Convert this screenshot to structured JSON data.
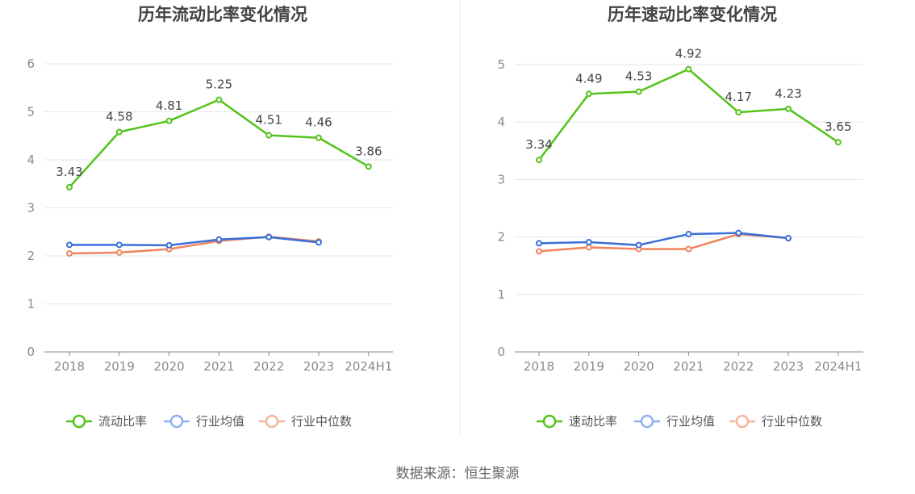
{
  "footer": {
    "source": "数据来源：恒生聚源"
  },
  "chart_data": [
    {
      "type": "line",
      "title": "历年流动比率变化情况",
      "categories": [
        "2018",
        "2019",
        "2020",
        "2021",
        "2022",
        "2023",
        "2024H1"
      ],
      "ylim": [
        0,
        6
      ],
      "yticks": [
        0,
        1,
        2,
        3,
        4,
        5,
        6
      ],
      "grid": true,
      "legend_position": "bottom",
      "series": [
        {
          "name": "流动比率",
          "color": "#52c41a",
          "labels": true,
          "values": [
            3.43,
            4.58,
            4.81,
            5.25,
            4.51,
            4.46,
            3.86
          ]
        },
        {
          "name": "行业均值",
          "color": "#3a6fd8",
          "labels": false,
          "values": [
            2.23,
            2.23,
            2.22,
            2.34,
            2.39,
            2.28,
            null
          ]
        },
        {
          "name": "行业中位数",
          "color": "#f0845a",
          "labels": false,
          "values": [
            2.05,
            2.07,
            2.14,
            2.31,
            2.4,
            2.3,
            null
          ]
        }
      ]
    },
    {
      "type": "line",
      "title": "历年速动比率变化情况",
      "categories": [
        "2018",
        "2019",
        "2020",
        "2021",
        "2022",
        "2023",
        "2024H1"
      ],
      "ylim": [
        0,
        5
      ],
      "yticks": [
        0,
        1,
        2,
        3,
        4,
        5
      ],
      "grid": true,
      "legend_position": "bottom",
      "series": [
        {
          "name": "速动比率",
          "color": "#52c41a",
          "labels": true,
          "values": [
            3.34,
            4.49,
            4.53,
            4.92,
            4.17,
            4.23,
            3.65
          ]
        },
        {
          "name": "行业均值",
          "color": "#3a6fd8",
          "labels": false,
          "values": [
            1.89,
            1.91,
            1.86,
            2.05,
            2.07,
            1.98,
            null
          ]
        },
        {
          "name": "行业中位数",
          "color": "#f0845a",
          "labels": false,
          "values": [
            1.75,
            1.82,
            1.79,
            1.79,
            2.05,
            1.98,
            null
          ]
        }
      ]
    }
  ]
}
